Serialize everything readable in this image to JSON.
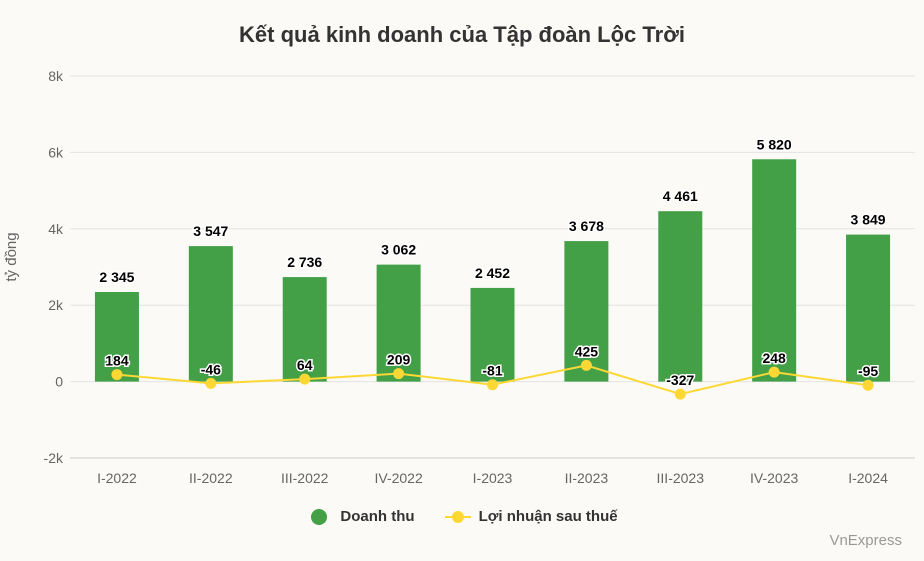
{
  "chart_data": {
    "type": "bar",
    "title": "Kết quả kinh doanh của Tập đoàn Lộc Trời",
    "ylabel": "tỷ đồng",
    "ylim": [
      -2000,
      8000
    ],
    "yticks": [
      -2000,
      0,
      2000,
      4000,
      6000,
      8000
    ],
    "ytick_labels": [
      "-2k",
      "0",
      "2k",
      "4k",
      "6k",
      "8k"
    ],
    "categories": [
      "I-2022",
      "II-2022",
      "III-2022",
      "IV-2022",
      "I-2023",
      "II-2023",
      "III-2023",
      "IV-2023",
      "I-2024"
    ],
    "series": [
      {
        "name": "Doanh thu",
        "type": "bar",
        "color": "#43a047",
        "values": [
          2345,
          3547,
          2736,
          3062,
          2452,
          3678,
          4461,
          5820,
          3849
        ],
        "labels": [
          "2 345",
          "3 547",
          "2 736",
          "3 062",
          "2 452",
          "3 678",
          "4 461",
          "5 820",
          "3 849"
        ]
      },
      {
        "name": "Lợi nhuận sau thuế",
        "type": "line",
        "color": "#fdd835",
        "values": [
          184,
          -46,
          64,
          209,
          -81,
          425,
          -327,
          248,
          -95
        ],
        "labels": [
          "184",
          "-46",
          "64",
          "209",
          "-81",
          "425",
          "-327",
          "248",
          "-95"
        ]
      }
    ],
    "grid": true,
    "legend_position": "bottom"
  },
  "credit": "VnExpress"
}
